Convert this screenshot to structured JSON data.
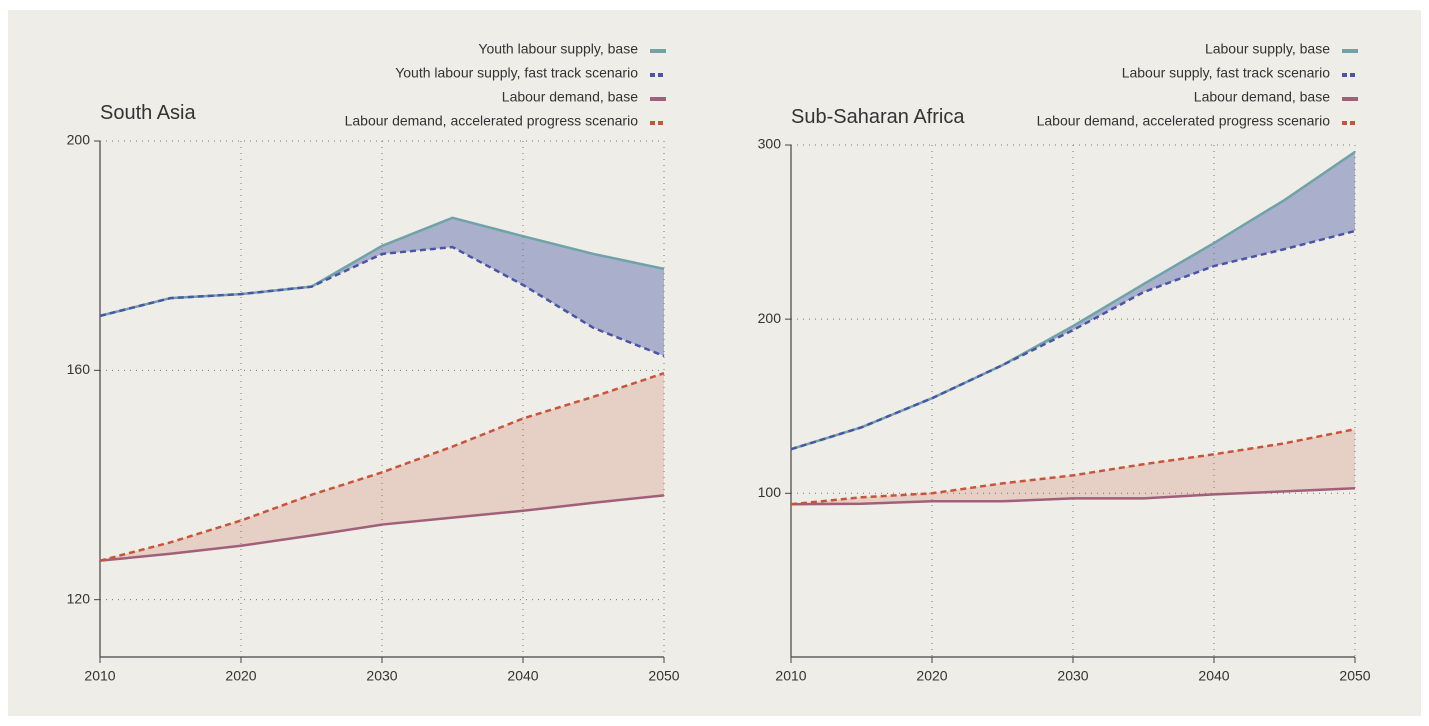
{
  "chart_data": [
    {
      "type": "line",
      "title": "South Asia",
      "x": [
        2010,
        2015,
        2020,
        2025,
        2030,
        2035,
        2040,
        2045,
        2050
      ],
      "xlim": [
        2010,
        2050
      ],
      "xticks": [
        2010,
        2020,
        2030,
        2040,
        2050
      ],
      "ylim": [
        110,
        200
      ],
      "yticks": [
        120,
        160,
        200
      ],
      "grid": true,
      "series": [
        {
          "name": "Youth labour supply, base",
          "color": "#6fa3a8",
          "dashed": false,
          "values": [
            169.5,
            172.6,
            173.3,
            174.6,
            181.7,
            186.6,
            183.4,
            180.3,
            177.7
          ]
        },
        {
          "name": "Youth labour supply, fast track scenario",
          "color": "#4b55a6",
          "dashed": true,
          "fill": "#aab0cb",
          "values": [
            169.5,
            172.6,
            173.3,
            174.6,
            180.3,
            181.5,
            174.9,
            167.4,
            162.5
          ]
        },
        {
          "name": "Labour demand, base",
          "color": "#a0607a",
          "dashed": false,
          "values": [
            126.8,
            128.0,
            129.4,
            131.2,
            133.1,
            134.3,
            135.5,
            136.9,
            138.2
          ]
        },
        {
          "name": "Labour demand, accelerated progress scenario",
          "color": "#c8553a",
          "dashed": true,
          "fill": "#e6cfc5",
          "values": [
            126.8,
            130.0,
            133.8,
            138.3,
            142.2,
            146.7,
            151.6,
            155.4,
            159.5
          ]
        }
      ]
    },
    {
      "type": "line",
      "title": "Sub-Saharan Africa",
      "x": [
        2010,
        2015,
        2020,
        2025,
        2030,
        2035,
        2040,
        2045,
        2050
      ],
      "xlim": [
        2010,
        2050
      ],
      "xticks": [
        2010,
        2020,
        2030,
        2040,
        2050
      ],
      "ylim": [
        6,
        300
      ],
      "yticks": [
        100,
        200,
        300
      ],
      "grid": true,
      "series": [
        {
          "name": "Labour supply, base",
          "color": "#6fa3a8",
          "dashed": false,
          "values": [
            125.3,
            137.9,
            154.6,
            173.6,
            196.0,
            220.1,
            243.7,
            268.4,
            296.0
          ]
        },
        {
          "name": "Labour supply, fast track scenario",
          "color": "#4b55a6",
          "dashed": true,
          "fill": "#aab0cb",
          "values": [
            125.3,
            137.9,
            154.6,
            173.6,
            193.7,
            215.5,
            230.5,
            240.2,
            250.6
          ]
        },
        {
          "name": "Labour  demand, base",
          "color": "#a0607a",
          "dashed": false,
          "values": [
            93.7,
            94.0,
            95.4,
            95.4,
            97.1,
            97.1,
            99.4,
            101.1,
            102.9
          ]
        },
        {
          "name": "Labour demand, accelerated progress scenario",
          "color": "#c8553a",
          "dashed": true,
          "fill": "#e6cfc5",
          "values": [
            93.7,
            97.7,
            100.0,
            105.7,
            110.3,
            116.7,
            122.4,
            128.7,
            136.8
          ]
        }
      ]
    }
  ]
}
